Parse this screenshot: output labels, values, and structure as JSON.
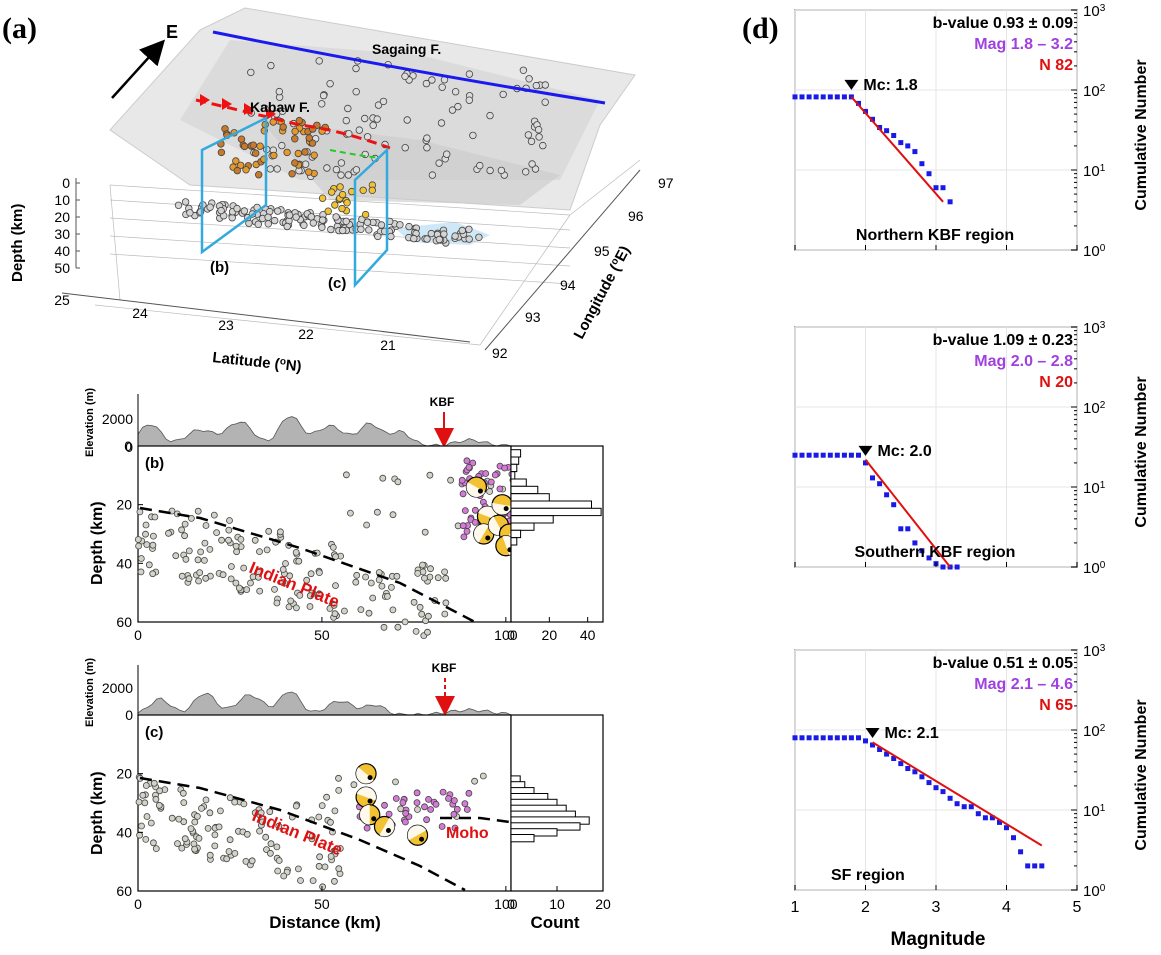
{
  "panel_a": {
    "panel_label": "(a)",
    "direction": "E",
    "fault_sagaing": "Sagaing F.",
    "fault_kabaw": "Kabaw F.",
    "profile_b": "(b)",
    "profile_c": "(c)",
    "depth_label": "Depth (km)",
    "depth_ticks": [
      "0",
      "10",
      "20",
      "30",
      "40",
      "50"
    ],
    "lat_label": "Latitude (",
    "lat_sup": "o",
    "lat_unit": "N)",
    "lat_ticks": [
      "25",
      "24",
      "23",
      "22",
      "21"
    ],
    "lon_label": "Longitude (",
    "lon_sup": "o",
    "lon_unit": "E)",
    "lon_ticks": [
      "97",
      "96",
      "95",
      "94",
      "93",
      "92"
    ],
    "colors": {
      "sagaing": "#1a1aee",
      "kabaw": "#ee1111",
      "box": "#33aadd"
    }
  },
  "panel_b": {
    "label": "(b)",
    "elevation_label": "Elevation (m)",
    "elev_ticks": [
      "2000",
      "0"
    ],
    "kbf": "KBF",
    "ylabel": "Depth (km)",
    "y_ticks": [
      "0",
      "20",
      "40",
      "60"
    ],
    "x_ticks": [
      "0",
      "50",
      "100"
    ],
    "count_ticks": [
      "0",
      "20",
      "40"
    ],
    "plate": "Indian Plate",
    "count_hist": [
      {
        "depth": 2.5,
        "count": 5
      },
      {
        "depth": 5,
        "count": 4
      },
      {
        "depth": 7.5,
        "count": 3
      },
      {
        "depth": 10,
        "count": 2
      },
      {
        "depth": 12.5,
        "count": 8
      },
      {
        "depth": 15,
        "count": 14
      },
      {
        "depth": 17.5,
        "count": 20
      },
      {
        "depth": 20,
        "count": 42
      },
      {
        "depth": 22.5,
        "count": 47
      },
      {
        "depth": 25,
        "count": 22
      },
      {
        "depth": 27.5,
        "count": 12
      },
      {
        "depth": 30,
        "count": 5
      },
      {
        "depth": 32.5,
        "count": 3
      }
    ]
  },
  "panel_c": {
    "label": "(c)",
    "elevation_label": "Elevation (m)",
    "elev_ticks": [
      "2000",
      "0"
    ],
    "kbf": "KBF",
    "ylabel": "Depth (km)",
    "y_ticks": [
      "20",
      "40",
      "60"
    ],
    "x_ticks": [
      "0",
      "50",
      "100"
    ],
    "count_ticks": [
      "0",
      "10",
      "20"
    ],
    "xlabel": "Distance (km)",
    "count_label": "Count",
    "plate": "Indian Plate",
    "moho": "Moho",
    "count_hist": [
      {
        "depth": 22,
        "count": 2
      },
      {
        "depth": 24,
        "count": 3
      },
      {
        "depth": 26,
        "count": 5
      },
      {
        "depth": 28,
        "count": 8
      },
      {
        "depth": 30,
        "count": 10
      },
      {
        "depth": 32,
        "count": 12
      },
      {
        "depth": 34,
        "count": 14
      },
      {
        "depth": 36,
        "count": 17
      },
      {
        "depth": 38,
        "count": 15
      },
      {
        "depth": 40,
        "count": 10
      },
      {
        "depth": 42,
        "count": 5
      }
    ]
  },
  "panel_d": {
    "label": "(d)",
    "xlabel": "Magnitude",
    "ylabel": "Cumulative Number",
    "x_ticks": [
      "1",
      "2",
      "3",
      "4",
      "5"
    ],
    "y_ticks": [
      [
        "10",
        "3"
      ],
      [
        "10",
        "2"
      ],
      [
        "10",
        "1"
      ],
      [
        "10",
        "0"
      ]
    ]
  },
  "chart_data": [
    {
      "type": "scatter",
      "title": "Northern KBF region",
      "xlabel": "Magnitude",
      "ylabel": "Cumulative Number",
      "xlim": [
        1,
        5
      ],
      "ylim": [
        1,
        1000
      ],
      "yscale": "log",
      "b_value": "b-value 0.93 ± 0.09",
      "mag_range": "Mag  1.8 – 3.2",
      "n_label": "N  82",
      "mc_label": "Mc: 1.8",
      "mc": 1.8,
      "series": [
        {
          "name": "cumulative",
          "x": [
            1.0,
            1.1,
            1.2,
            1.3,
            1.4,
            1.5,
            1.6,
            1.7,
            1.8,
            1.9,
            2.0,
            2.1,
            2.2,
            2.3,
            2.4,
            2.5,
            2.6,
            2.7,
            2.8,
            2.9,
            3.0,
            3.1,
            3.2
          ],
          "y": [
            82,
            82,
            82,
            82,
            82,
            82,
            82,
            82,
            82,
            68,
            54,
            43,
            34,
            31,
            27,
            22,
            20,
            17,
            12,
            9,
            6,
            6,
            4
          ]
        },
        {
          "name": "fit",
          "x": [
            1.8,
            3.1
          ],
          "y": [
            82,
            4
          ]
        }
      ]
    },
    {
      "type": "scatter",
      "title": "Southern KBF region",
      "xlabel": "Magnitude",
      "ylabel": "Cumulative Number",
      "xlim": [
        1,
        5
      ],
      "ylim": [
        1,
        1000
      ],
      "yscale": "log",
      "b_value": "b-value 1.09 ± 0.23",
      "mag_range": "Mag  2.0 – 2.8",
      "n_label": "N  20",
      "mc_label": "Mc: 2.0",
      "mc": 2.0,
      "series": [
        {
          "name": "cumulative",
          "x": [
            1.0,
            1.1,
            1.2,
            1.3,
            1.4,
            1.5,
            1.6,
            1.7,
            1.8,
            1.9,
            2.0,
            2.1,
            2.2,
            2.3,
            2.4,
            2.5,
            2.6,
            2.7,
            2.8,
            2.9,
            3.0,
            3.1,
            3.2,
            3.3
          ],
          "y": [
            25,
            25,
            25,
            25,
            25,
            25,
            25,
            25,
            25,
            25,
            20,
            13,
            11,
            8,
            6,
            3,
            3,
            2,
            1.6,
            1.3,
            1.1,
            1,
            1,
            1
          ]
        },
        {
          "name": "fit",
          "x": [
            2.0,
            3.2
          ],
          "y": [
            22,
            1
          ]
        }
      ]
    },
    {
      "type": "scatter",
      "title": "SF region",
      "xlabel": "Magnitude",
      "ylabel": "Cumulative Number",
      "xlim": [
        1,
        5
      ],
      "ylim": [
        1,
        1000
      ],
      "yscale": "log",
      "b_value": "b-value 0.51 ± 0.05",
      "mag_range": "Mag  2.1 – 4.6",
      "n_label": "N  65",
      "mc_label": "Mc: 2.1",
      "mc": 2.1,
      "series": [
        {
          "name": "cumulative",
          "x": [
            1.0,
            1.1,
            1.2,
            1.3,
            1.4,
            1.5,
            1.6,
            1.7,
            1.8,
            1.9,
            2.0,
            2.1,
            2.2,
            2.3,
            2.4,
            2.5,
            2.6,
            2.7,
            2.8,
            2.9,
            3.0,
            3.1,
            3.2,
            3.3,
            3.4,
            3.5,
            3.6,
            3.7,
            3.8,
            3.9,
            4.0,
            4.1,
            4.2,
            4.3,
            4.4,
            4.5
          ],
          "y": [
            80,
            80,
            80,
            80,
            80,
            80,
            80,
            80,
            80,
            80,
            73,
            65,
            57,
            50,
            44,
            38,
            33,
            30,
            26,
            22,
            19,
            17,
            14,
            12,
            11,
            11,
            9,
            8,
            8,
            7,
            6,
            4.5,
            3,
            2,
            2,
            2
          ]
        },
        {
          "name": "fit",
          "x": [
            2.1,
            4.5
          ],
          "y": [
            70,
            3.6
          ]
        }
      ]
    }
  ]
}
